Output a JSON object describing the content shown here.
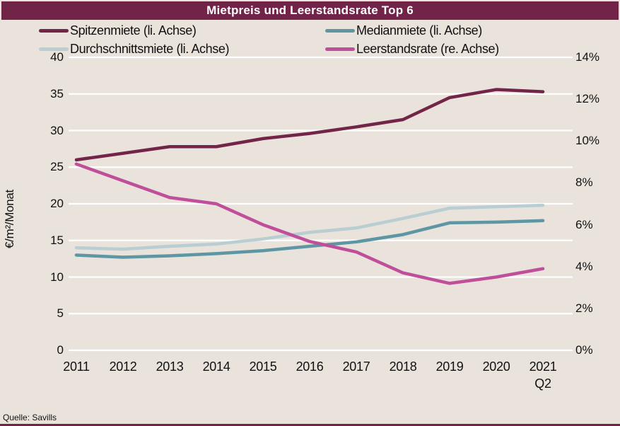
{
  "header": {
    "title": "Mietpreis und Leerstandsrate Top 6"
  },
  "source": {
    "label": "Quelle: Savills"
  },
  "colors": {
    "background": "#e9e3dc",
    "header_bg": "#722448",
    "gridline": "#ffffff",
    "bottom_rule": "#722448",
    "title_text": "#ffffff",
    "axis_text": "#111111"
  },
  "chart_data": {
    "type": "line",
    "title": "Mietpreis und Leerstandsrate Top 6",
    "categories": [
      "2011",
      "2012",
      "2013",
      "2014",
      "2015",
      "2016",
      "2017",
      "2018",
      "2019",
      "2020",
      "2021 Q2"
    ],
    "series": [
      {
        "id": "spitzenmiete",
        "name": "Spitzenmiete (li. Achse)",
        "axis": "left",
        "color": "#722548",
        "values": [
          26.0,
          26.9,
          27.8,
          27.8,
          28.9,
          29.6,
          30.5,
          31.5,
          34.5,
          35.6,
          35.3
        ]
      },
      {
        "id": "medianmiete",
        "name": "Medianmiete (li. Achse)",
        "axis": "left",
        "color": "#5e96a3",
        "values": [
          13.0,
          12.7,
          12.9,
          13.2,
          13.6,
          14.2,
          14.8,
          15.8,
          17.4,
          17.5,
          17.7
        ]
      },
      {
        "id": "durchschnittsmiete",
        "name": "Durchschnittsmiete (li. Achse)",
        "axis": "left",
        "color": "#b9ced3",
        "values": [
          14.0,
          13.8,
          14.2,
          14.5,
          15.2,
          16.1,
          16.7,
          18.0,
          19.4,
          19.6,
          19.8
        ]
      },
      {
        "id": "leerstandsrate",
        "name": "Leerstandsrate (re. Achse)",
        "axis": "right",
        "color": "#bf4f9a",
        "values": [
          8.9,
          8.1,
          7.3,
          7.0,
          6.0,
          5.2,
          4.7,
          3.7,
          3.2,
          3.5,
          3.9
        ]
      }
    ],
    "left_axis": {
      "label": "€/m²/Monat",
      "min": 0,
      "max": 40,
      "ticks": [
        0,
        5,
        10,
        15,
        20,
        25,
        30,
        35,
        40
      ]
    },
    "right_axis": {
      "min": 0,
      "max": 14,
      "ticks": [
        0,
        2,
        4,
        6,
        8,
        10,
        12,
        14
      ],
      "tick_suffix": "%"
    },
    "legend_position": "top",
    "grid": "horizontal"
  }
}
